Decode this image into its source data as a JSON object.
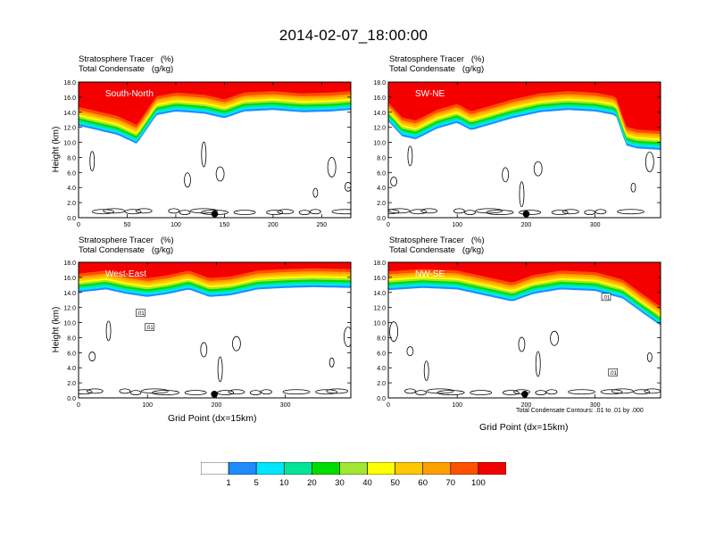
{
  "title": "2014-02-07_18:00:00",
  "colors": {
    "levels": [
      "#ffffff",
      "#1e8cff",
      "#00e6ff",
      "#00e696",
      "#00dc00",
      "#a0e632",
      "#ffff00",
      "#ffc800",
      "#ffa000",
      "#ff5000",
      "#f50000"
    ]
  },
  "colorbar": {
    "labels": [
      "1",
      "5",
      "10",
      "20",
      "30",
      "40",
      "50",
      "60",
      "70",
      "100"
    ]
  },
  "chart_data": [
    {
      "type": "heatmap",
      "header_line1": "Stratosphere Tracer   (%)",
      "header_line2": "Total Condensate   (g/kg)",
      "panel_label": "South-North",
      "ylabel": "Height (km)",
      "xlabel": "",
      "xlim": [
        0,
        280
      ],
      "ylim": [
        0,
        18
      ],
      "xticks": [
        "0",
        "50",
        "100",
        "150",
        "200",
        "250"
      ],
      "xtick_values": [
        0,
        50,
        100,
        150,
        200,
        250
      ],
      "yticks": [
        "0.0",
        "2.0",
        "4.0",
        "6.0",
        "8.0",
        "10.0",
        "12.0",
        "14.0",
        "16.0",
        "18.0"
      ],
      "marker_x": 140,
      "tracer_base_km": [
        [
          0,
          12.2
        ],
        [
          20,
          11.6
        ],
        [
          40,
          11.0
        ],
        [
          60,
          9.8
        ],
        [
          80,
          13.6
        ],
        [
          100,
          14.1
        ],
        [
          130,
          13.8
        ],
        [
          150,
          13.2
        ],
        [
          170,
          14.1
        ],
        [
          200,
          14.3
        ],
        [
          230,
          14.0
        ],
        [
          260,
          14.1
        ],
        [
          280,
          14.3
        ]
      ],
      "contour_note": "",
      "contour_labels": []
    },
    {
      "type": "heatmap",
      "header_line1": "Stratosphere Tracer   (%)",
      "header_line2": "Total Condensate   (g/kg)",
      "panel_label": "SW-NE",
      "ylabel": "",
      "xlabel": "",
      "xlim": [
        0,
        395
      ],
      "ylim": [
        0,
        18
      ],
      "xticks": [
        "0",
        "100",
        "200",
        "300"
      ],
      "xtick_values": [
        0,
        100,
        200,
        300
      ],
      "yticks": [
        "0.0",
        "2.0",
        "4.0",
        "6.0",
        "8.0",
        "10.0",
        "12.0",
        "14.0",
        "16.0",
        "18.0"
      ],
      "marker_x": 200,
      "tracer_base_km": [
        [
          0,
          12.8
        ],
        [
          20,
          10.8
        ],
        [
          40,
          10.4
        ],
        [
          70,
          11.8
        ],
        [
          100,
          12.6
        ],
        [
          120,
          11.6
        ],
        [
          150,
          12.4
        ],
        [
          180,
          13.2
        ],
        [
          220,
          14.0
        ],
        [
          260,
          14.3
        ],
        [
          300,
          14.1
        ],
        [
          330,
          13.6
        ],
        [
          345,
          9.6
        ],
        [
          360,
          9.2
        ],
        [
          395,
          9.0
        ]
      ],
      "contour_note": "",
      "contour_labels": []
    },
    {
      "type": "heatmap",
      "header_line1": "Stratosphere Tracer   (%)",
      "header_line2": "Total Condensate   (g/kg)",
      "panel_label": "West-East",
      "ylabel": "Height (km)",
      "xlabel": "Grid Point (dx=15km)",
      "xlim": [
        0,
        395
      ],
      "ylim": [
        0,
        18
      ],
      "xticks": [
        "0",
        "100",
        "200",
        "300"
      ],
      "xtick_values": [
        0,
        100,
        200,
        300
      ],
      "yticks": [
        "0.0",
        "2.0",
        "4.0",
        "6.0",
        "8.0",
        "10.0",
        "12.0",
        "14.0",
        "16.0",
        "18.0"
      ],
      "marker_x": 197,
      "tracer_base_km": [
        [
          0,
          14.0
        ],
        [
          40,
          14.4
        ],
        [
          70,
          13.8
        ],
        [
          100,
          13.4
        ],
        [
          130,
          13.8
        ],
        [
          160,
          14.4
        ],
        [
          190,
          13.4
        ],
        [
          220,
          13.6
        ],
        [
          260,
          14.4
        ],
        [
          300,
          14.6
        ],
        [
          340,
          14.7
        ],
        [
          395,
          14.6
        ]
      ],
      "contour_note": "",
      "contour_labels": [
        {
          "text": ".01",
          "x": 90,
          "y": 11.3
        },
        {
          "text": ".01",
          "x": 103,
          "y": 9.4
        }
      ]
    },
    {
      "type": "heatmap",
      "header_line1": "Stratosphere Tracer   (%)",
      "header_line2": "Total Condensate   (g/kg)",
      "panel_label": "NW-SE",
      "ylabel": "",
      "xlabel": "Grid Point (dx=15km)",
      "xlim": [
        0,
        395
      ],
      "ylim": [
        0,
        18
      ],
      "xticks": [
        "0",
        "100",
        "200",
        "300"
      ],
      "xtick_values": [
        0,
        100,
        200,
        300
      ],
      "yticks": [
        "0.0",
        "2.0",
        "4.0",
        "6.0",
        "8.0",
        "10.0",
        "12.0",
        "14.0",
        "16.0",
        "18.0"
      ],
      "marker_x": 198,
      "tracer_base_km": [
        [
          0,
          14.3
        ],
        [
          50,
          14.6
        ],
        [
          100,
          14.4
        ],
        [
          150,
          13.4
        ],
        [
          180,
          12.8
        ],
        [
          210,
          13.8
        ],
        [
          250,
          14.4
        ],
        [
          300,
          14.2
        ],
        [
          340,
          13.2
        ],
        [
          370,
          11.2
        ],
        [
          395,
          9.6
        ]
      ],
      "contour_note": "Total Condensate Contours: .01 to .01 by .000",
      "contour_labels": [
        {
          "text": ".01",
          "x": 316,
          "y": 13.4
        },
        {
          "text": ".01",
          "x": 326,
          "y": 3.4
        }
      ]
    }
  ]
}
